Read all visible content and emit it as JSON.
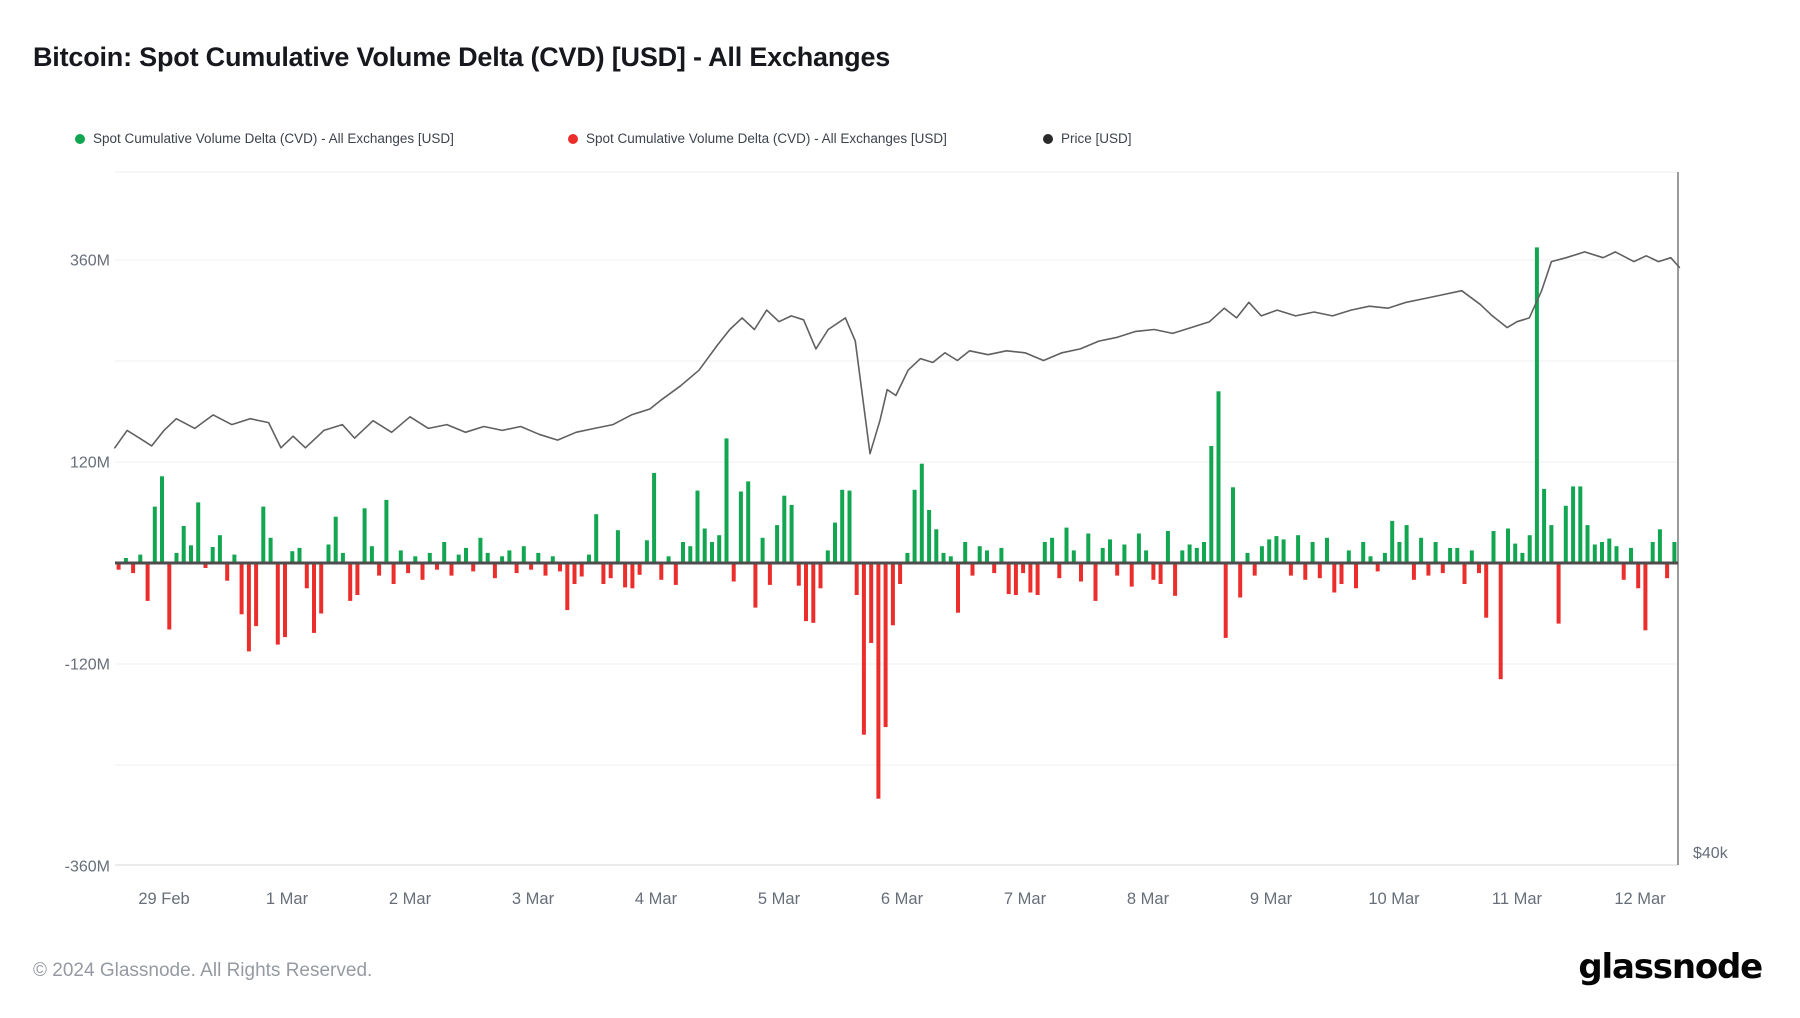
{
  "title": "Bitcoin: Spot Cumulative Volume Delta (CVD) [USD] - All Exchanges",
  "footer": {
    "copyright": "© 2024 Glassnode. All Rights Reserved."
  },
  "brand": {
    "wordmark": "glassnode"
  },
  "legend": {
    "items": [
      {
        "label": "Spot Cumulative Volume Delta (CVD) - All Exchanges [USD]",
        "color": "#11A64F"
      },
      {
        "label": "Spot Cumulative Volume Delta (CVD) - All Exchanges [USD]",
        "color": "#EB2D2B"
      },
      {
        "label": "Price [USD]",
        "color": "#2B2B2B"
      }
    ]
  },
  "chart_data": {
    "type": "mixed",
    "title": "Bitcoin: Spot Cumulative Volume Delta (CVD) [USD] - All Exchanges",
    "series": [
      {
        "name": "Spot Cumulative Volume Delta (CVD) - All Exchanges [USD]",
        "type": "bar",
        "polarity": "positive",
        "color": "#11A64F",
        "unit": "USD"
      },
      {
        "name": "Spot Cumulative Volume Delta (CVD) - All Exchanges [USD]",
        "type": "bar",
        "polarity": "negative",
        "color": "#EB2D2B",
        "unit": "USD"
      },
      {
        "name": "Price [USD]",
        "type": "line",
        "color": "#606060",
        "unit": "USD"
      }
    ],
    "y_axis": {
      "unit": "USD (millions)",
      "ticks": [
        {
          "label": "360M",
          "value": 360
        },
        {
          "label": "120M",
          "value": 120
        },
        {
          "label": "-120M",
          "value": -120
        },
        {
          "label": "-360M",
          "value": -360
        }
      ],
      "range_m": [
        -360,
        360
      ]
    },
    "x_axis": {
      "ticks": [
        {
          "label": "29 Feb",
          "day": 0
        },
        {
          "label": "1 Mar",
          "day": 1
        },
        {
          "label": "2 Mar",
          "day": 2
        },
        {
          "label": "3 Mar",
          "day": 3
        },
        {
          "label": "4 Mar",
          "day": 4
        },
        {
          "label": "5 Mar",
          "day": 5
        },
        {
          "label": "6 Mar",
          "day": 6
        },
        {
          "label": "7 Mar",
          "day": 7
        },
        {
          "label": "8 Mar",
          "day": 8
        },
        {
          "label": "9 Mar",
          "day": 9
        },
        {
          "label": "10 Mar",
          "day": 10
        },
        {
          "label": "11 Mar",
          "day": 11
        },
        {
          "label": "12 Mar",
          "day": 12
        }
      ]
    },
    "price_axis": {
      "tick_label": "$40k",
      "tick_value_thousands": 40
    },
    "layout_hints": {
      "gridlines_m": [
        360,
        240,
        120,
        -120,
        -240
      ],
      "legend_position": "top",
      "grid": "horizontal-only"
    },
    "bars": {
      "description": "Spot CVD per interval, millions USD; t in days since 29 Feb tick",
      "t_start_days": -0.398,
      "values_m": [
        -8,
        6,
        -12,
        10,
        -45,
        67,
        103,
        -79,
        12,
        44,
        21,
        72,
        -6,
        19,
        33,
        -21,
        10,
        -61,
        -105,
        -75,
        67,
        30,
        -97,
        -88,
        14,
        18,
        -30,
        -83,
        -60,
        22,
        55,
        12,
        -45,
        -38,
        65,
        20,
        -15,
        75,
        -25,
        15,
        -12,
        8,
        -20,
        12,
        -8,
        25,
        -15,
        10,
        18,
        -10,
        30,
        12,
        -18,
        8,
        15,
        -12,
        20,
        -8,
        12,
        -15,
        8,
        -10,
        -56,
        -25,
        -16,
        10,
        58,
        -25,
        -18,
        39,
        -29,
        -30,
        -14,
        27,
        107,
        -20,
        8,
        -26,
        25,
        20,
        86,
        41,
        25,
        33,
        148,
        -22,
        85,
        97,
        -53,
        30,
        -26,
        45,
        80,
        69,
        -27,
        -69,
        -71,
        -30,
        15,
        48,
        87,
        86,
        -38,
        -204,
        -95,
        -280,
        -195,
        -74,
        -25,
        12,
        87,
        118,
        63,
        40,
        12,
        8,
        -59,
        25,
        -15,
        20,
        15,
        -12,
        18,
        -37,
        -38,
        -12,
        -35,
        -38,
        25,
        30,
        -18,
        42,
        15,
        -22,
        35,
        -45,
        18,
        28,
        -15,
        22,
        -28,
        35,
        15,
        -20,
        -25,
        38,
        -39,
        15,
        22,
        18,
        25,
        139,
        204,
        -89,
        90,
        -41,
        12,
        -15,
        20,
        28,
        32,
        28,
        -15,
        33,
        -20,
        25,
        -18,
        30,
        -35,
        -25,
        15,
        -30,
        25,
        8,
        -10,
        12,
        50,
        25,
        45,
        -20,
        30,
        -15,
        25,
        -12,
        18,
        18,
        -25,
        15,
        -12,
        -65,
        38,
        -138,
        41,
        23,
        12,
        33,
        375,
        88,
        45,
        -72,
        68,
        91,
        91,
        45,
        22,
        25,
        29,
        20,
        -20,
        18,
        -30,
        -80,
        25,
        40,
        -18,
        25
      ]
    },
    "price_line": {
      "unit": "USD thousands",
      "points": [
        [
          -0.4,
          61.4
        ],
        [
          -0.3,
          62.3
        ],
        [
          -0.2,
          61.9
        ],
        [
          -0.1,
          61.5
        ],
        [
          0,
          62.3
        ],
        [
          0.1,
          62.9
        ],
        [
          0.25,
          62.4
        ],
        [
          0.4,
          63.1
        ],
        [
          0.55,
          62.6
        ],
        [
          0.7,
          62.9
        ],
        [
          0.85,
          62.7
        ],
        [
          0.95,
          61.4
        ],
        [
          1.05,
          62
        ],
        [
          1.15,
          61.4
        ],
        [
          1.3,
          62.3
        ],
        [
          1.45,
          62.6
        ],
        [
          1.55,
          61.9
        ],
        [
          1.7,
          62.8
        ],
        [
          1.85,
          62.2
        ],
        [
          2,
          63
        ],
        [
          2.15,
          62.4
        ],
        [
          2.3,
          62.6
        ],
        [
          2.45,
          62.2
        ],
        [
          2.6,
          62.5
        ],
        [
          2.75,
          62.3
        ],
        [
          2.9,
          62.5
        ],
        [
          3.05,
          62.1
        ],
        [
          3.2,
          61.8
        ],
        [
          3.35,
          62.2
        ],
        [
          3.5,
          62.4
        ],
        [
          3.65,
          62.6
        ],
        [
          3.8,
          63.1
        ],
        [
          3.95,
          63.4
        ],
        [
          4.05,
          63.9
        ],
        [
          4.2,
          64.6
        ],
        [
          4.35,
          65.4
        ],
        [
          4.5,
          66.7
        ],
        [
          4.6,
          67.5
        ],
        [
          4.7,
          68.1
        ],
        [
          4.8,
          67.5
        ],
        [
          4.9,
          68.5
        ],
        [
          5,
          67.9
        ],
        [
          5.1,
          68.2
        ],
        [
          5.2,
          68
        ],
        [
          5.3,
          66.5
        ],
        [
          5.4,
          67.5
        ],
        [
          5.54,
          68.1
        ],
        [
          5.62,
          66.9
        ],
        [
          5.74,
          61.1
        ],
        [
          5.82,
          62.8
        ],
        [
          5.88,
          64.4
        ],
        [
          5.95,
          64.1
        ],
        [
          6.05,
          65.4
        ],
        [
          6.15,
          66
        ],
        [
          6.25,
          65.8
        ],
        [
          6.35,
          66.3
        ],
        [
          6.45,
          65.9
        ],
        [
          6.55,
          66.4
        ],
        [
          6.7,
          66.2
        ],
        [
          6.85,
          66.4
        ],
        [
          7,
          66.3
        ],
        [
          7.15,
          65.9
        ],
        [
          7.3,
          66.3
        ],
        [
          7.45,
          66.5
        ],
        [
          7.6,
          66.9
        ],
        [
          7.75,
          67.1
        ],
        [
          7.9,
          67.4
        ],
        [
          8.05,
          67.5
        ],
        [
          8.2,
          67.3
        ],
        [
          8.35,
          67.6
        ],
        [
          8.5,
          67.9
        ],
        [
          8.62,
          68.6
        ],
        [
          8.72,
          68.1
        ],
        [
          8.82,
          68.9
        ],
        [
          8.92,
          68.2
        ],
        [
          9.05,
          68.5
        ],
        [
          9.2,
          68.2
        ],
        [
          9.35,
          68.4
        ],
        [
          9.5,
          68.2
        ],
        [
          9.65,
          68.5
        ],
        [
          9.8,
          68.7
        ],
        [
          9.95,
          68.6
        ],
        [
          10.1,
          68.9
        ],
        [
          10.25,
          69.1
        ],
        [
          10.4,
          69.3
        ],
        [
          10.55,
          69.5
        ],
        [
          10.7,
          68.8
        ],
        [
          10.8,
          68.2
        ],
        [
          10.92,
          67.6
        ],
        [
          11,
          67.9
        ],
        [
          11.1,
          68.1
        ],
        [
          11.2,
          69.5
        ],
        [
          11.28,
          71
        ],
        [
          11.4,
          71.2
        ],
        [
          11.55,
          71.5
        ],
        [
          11.7,
          71.2
        ],
        [
          11.8,
          71.5
        ],
        [
          11.95,
          71
        ],
        [
          12.05,
          71.3
        ],
        [
          12.15,
          71
        ],
        [
          12.25,
          71.2
        ],
        [
          12.32,
          70.7
        ]
      ]
    }
  }
}
